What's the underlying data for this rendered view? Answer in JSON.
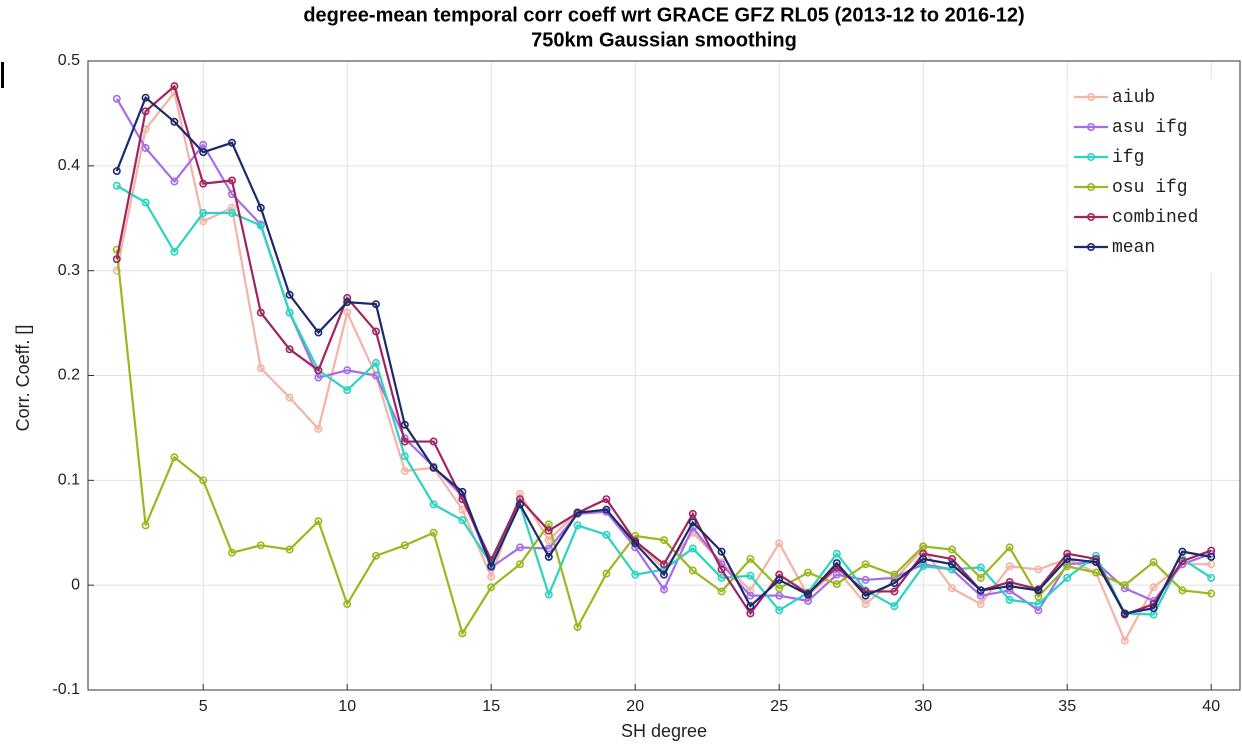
{
  "chart_data": {
    "type": "line",
    "title": "degree-mean temporal corr coeff wrt GRACE GFZ RL05 (2013-12 to 2016-12)",
    "subtitle": "750km Gaussian smoothing",
    "x_label": "SH degree",
    "y_label": "Corr. Coeff. []",
    "x": [
      2,
      3,
      4,
      5,
      6,
      7,
      8,
      9,
      10,
      11,
      12,
      13,
      14,
      15,
      16,
      17,
      18,
      19,
      20,
      21,
      22,
      23,
      24,
      25,
      26,
      27,
      28,
      29,
      30,
      31,
      32,
      33,
      34,
      35,
      36,
      37,
      38,
      39,
      40
    ],
    "xlim": [
      1,
      41
    ],
    "xticks": [
      5,
      10,
      15,
      20,
      25,
      30,
      35,
      40
    ],
    "ylim": [
      -0.1,
      0.5
    ],
    "yticks": [
      -0.1,
      0,
      0.1,
      0.2,
      0.3,
      0.4,
      0.5
    ],
    "grid": true,
    "legend": "top-right",
    "series": [
      {
        "name": "aiub",
        "color": "#f4b3a6",
        "values": [
          0.3,
          0.435,
          0.47,
          0.347,
          0.36,
          0.207,
          0.179,
          0.149,
          0.26,
          0.2,
          0.109,
          0.112,
          0.072,
          0.008,
          0.087,
          0.043,
          0.07,
          0.07,
          0.043,
          0.015,
          0.05,
          0.022,
          -0.005,
          0.04,
          -0.01,
          0.015,
          -0.018,
          0.005,
          0.035,
          -0.003,
          -0.018,
          0.018,
          0.015,
          0.025,
          0.012,
          -0.053,
          -0.002,
          0.02,
          0.02
        ]
      },
      {
        "name": "asu ifg",
        "color": "#a66de8",
        "values": [
          0.464,
          0.417,
          0.385,
          0.42,
          0.373,
          0.344,
          0.26,
          0.198,
          0.205,
          0.2,
          0.14,
          0.113,
          0.085,
          0.017,
          0.036,
          0.035,
          0.068,
          0.07,
          0.036,
          -0.004,
          0.055,
          0.02,
          -0.01,
          -0.01,
          -0.015,
          0.01,
          0.005,
          0.007,
          0.02,
          0.015,
          -0.01,
          -0.005,
          -0.024,
          0.02,
          0.022,
          -0.003,
          -0.015,
          0.02,
          0.03
        ]
      },
      {
        "name": "ifg",
        "color": "#2ad4c0",
        "values": [
          0.381,
          0.365,
          0.318,
          0.355,
          0.355,
          0.343,
          0.26,
          0.205,
          0.186,
          0.212,
          0.123,
          0.077,
          0.062,
          0.02,
          0.077,
          -0.009,
          0.057,
          0.048,
          0.01,
          0.015,
          0.035,
          0.007,
          0.009,
          -0.024,
          -0.007,
          0.03,
          -0.005,
          -0.02,
          0.018,
          0.015,
          0.017,
          -0.014,
          -0.018,
          0.007,
          0.028,
          -0.027,
          -0.028,
          0.025,
          0.007
        ]
      },
      {
        "name": "osu ifg",
        "color": "#9ab81e",
        "values": [
          0.32,
          0.057,
          0.122,
          0.1,
          0.031,
          0.038,
          0.034,
          0.061,
          -0.018,
          0.028,
          0.038,
          0.05,
          -0.046,
          -0.002,
          0.02,
          0.058,
          -0.04,
          0.011,
          0.047,
          0.043,
          0.014,
          -0.006,
          0.025,
          -0.003,
          0.012,
          0.001,
          0.02,
          0.01,
          0.037,
          0.034,
          0.007,
          0.036,
          -0.011,
          0.018,
          0.012,
          0.0,
          0.022,
          -0.005,
          -0.008
        ]
      },
      {
        "name": "combined",
        "color": "#a0245e",
        "values": [
          0.311,
          0.452,
          0.476,
          0.383,
          0.386,
          0.26,
          0.225,
          0.205,
          0.274,
          0.242,
          0.137,
          0.137,
          0.082,
          0.024,
          0.082,
          0.052,
          0.069,
          0.082,
          0.042,
          0.02,
          0.068,
          0.015,
          -0.027,
          0.01,
          -0.008,
          0.017,
          -0.006,
          -0.006,
          0.03,
          0.025,
          -0.005,
          0.003,
          -0.004,
          0.03,
          0.025,
          -0.028,
          -0.018,
          0.023,
          0.033
        ]
      },
      {
        "name": "mean",
        "color": "#1a2a6c",
        "values": [
          0.395,
          0.465,
          0.442,
          0.413,
          0.422,
          0.36,
          0.277,
          0.241,
          0.27,
          0.268,
          0.153,
          0.112,
          0.089,
          0.018,
          0.077,
          0.027,
          0.069,
          0.072,
          0.04,
          0.01,
          0.06,
          0.032,
          -0.02,
          0.005,
          -0.009,
          0.021,
          -0.01,
          0.002,
          0.025,
          0.02,
          -0.005,
          -0.001,
          -0.005,
          0.025,
          0.022,
          -0.027,
          -0.022,
          0.032,
          0.027
        ]
      }
    ]
  }
}
